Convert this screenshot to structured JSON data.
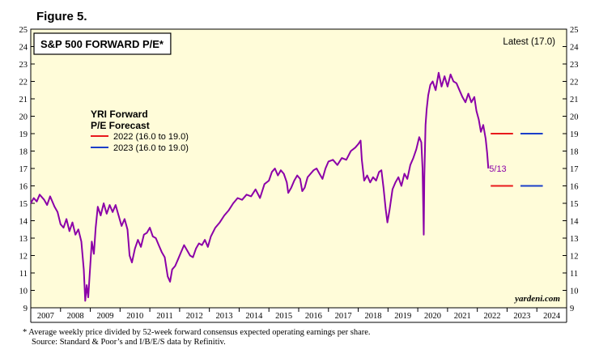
{
  "figure_label": "Figure 5.",
  "footnote": {
    "line1": "*  Average weekly price divided by 52-week forward consensus expected operating earnings per share.",
    "line2": "Source: Standard & Poor’s and I/B/E/S data by Refinitiv."
  },
  "chart_data": {
    "type": "line",
    "title": "S&P 500 FORWARD P/E*",
    "latest_label": "Latest (17.0)",
    "watermark": "yardeni.com",
    "ylim": [
      9,
      25
    ],
    "yticks": [
      9,
      10,
      11,
      12,
      13,
      14,
      15,
      16,
      17,
      18,
      19,
      20,
      21,
      22,
      23,
      24,
      25
    ],
    "xlim": [
      2007,
      2025
    ],
    "year_labels": [
      "2007",
      "2008",
      "2009",
      "2010",
      "2011",
      "2012",
      "2013",
      "2014",
      "2015",
      "2016",
      "2017",
      "2018",
      "2019",
      "2020",
      "2021",
      "2022",
      "2023",
      "2024"
    ],
    "series": [
      {
        "name": "S&P 500 Forward P/E",
        "color": "#8b00a8",
        "x": [
          2007.0,
          2007.1,
          2007.2,
          2007.3,
          2007.45,
          2007.55,
          2007.65,
          2007.8,
          2007.9,
          2008.0,
          2008.1,
          2008.2,
          2008.3,
          2008.4,
          2008.5,
          2008.6,
          2008.7,
          2008.78,
          2008.83,
          2008.88,
          2008.93,
          2009.0,
          2009.05,
          2009.12,
          2009.18,
          2009.25,
          2009.35,
          2009.45,
          2009.55,
          2009.65,
          2009.75,
          2009.85,
          2009.95,
          2010.05,
          2010.15,
          2010.25,
          2010.32,
          2010.4,
          2010.5,
          2010.6,
          2010.7,
          2010.8,
          2010.9,
          2011.0,
          2011.1,
          2011.2,
          2011.3,
          2011.4,
          2011.5,
          2011.6,
          2011.68,
          2011.75,
          2011.85,
          2011.95,
          2012.05,
          2012.15,
          2012.25,
          2012.35,
          2012.45,
          2012.55,
          2012.65,
          2012.75,
          2012.85,
          2012.95,
          2013.05,
          2013.2,
          2013.35,
          2013.5,
          2013.65,
          2013.8,
          2013.95,
          2014.1,
          2014.25,
          2014.4,
          2014.55,
          2014.7,
          2014.85,
          2015.0,
          2015.1,
          2015.2,
          2015.3,
          2015.4,
          2015.5,
          2015.6,
          2015.65,
          2015.75,
          2015.85,
          2015.95,
          2016.05,
          2016.12,
          2016.2,
          2016.3,
          2016.4,
          2016.5,
          2016.6,
          2016.7,
          2016.8,
          2016.9,
          2017.0,
          2017.15,
          2017.3,
          2017.45,
          2017.6,
          2017.75,
          2017.9,
          2018.0,
          2018.08,
          2018.12,
          2018.2,
          2018.3,
          2018.4,
          2018.5,
          2018.6,
          2018.7,
          2018.78,
          2018.85,
          2018.92,
          2018.98,
          2019.05,
          2019.15,
          2019.25,
          2019.35,
          2019.45,
          2019.55,
          2019.65,
          2019.75,
          2019.85,
          2019.95,
          2020.05,
          2020.12,
          2020.16,
          2020.2,
          2020.22,
          2020.26,
          2020.3,
          2020.35,
          2020.42,
          2020.5,
          2020.6,
          2020.7,
          2020.8,
          2020.9,
          2021.0,
          2021.1,
          2021.2,
          2021.3,
          2021.4,
          2021.5,
          2021.6,
          2021.7,
          2021.8,
          2021.9,
          2021.97,
          2022.05,
          2022.12,
          2022.2,
          2022.28,
          2022.33,
          2022.37
        ],
        "y": [
          15.0,
          15.3,
          15.1,
          15.5,
          15.2,
          14.9,
          15.4,
          14.8,
          14.5,
          13.8,
          13.6,
          14.1,
          13.4,
          13.9,
          13.2,
          13.5,
          12.8,
          11.2,
          9.4,
          10.3,
          9.6,
          11.5,
          12.8,
          12.1,
          13.6,
          14.8,
          14.3,
          15.0,
          14.4,
          14.9,
          14.5,
          14.9,
          14.3,
          13.7,
          14.1,
          13.5,
          12.0,
          11.6,
          12.4,
          12.9,
          12.5,
          13.2,
          13.3,
          13.6,
          13.1,
          13.0,
          12.6,
          12.2,
          11.9,
          10.8,
          10.5,
          11.2,
          11.4,
          11.8,
          12.2,
          12.6,
          12.3,
          12.0,
          11.9,
          12.4,
          12.7,
          12.6,
          12.9,
          12.5,
          13.1,
          13.6,
          13.9,
          14.3,
          14.6,
          15.0,
          15.3,
          15.2,
          15.5,
          15.4,
          15.8,
          15.3,
          16.1,
          16.3,
          16.8,
          17.0,
          16.6,
          16.9,
          16.7,
          16.2,
          15.6,
          15.9,
          16.3,
          16.6,
          16.4,
          15.7,
          15.9,
          16.5,
          16.7,
          16.9,
          17.0,
          16.7,
          16.4,
          17.0,
          17.4,
          17.5,
          17.2,
          17.6,
          17.5,
          18.0,
          18.2,
          18.4,
          18.6,
          17.5,
          16.3,
          16.6,
          16.2,
          16.5,
          16.3,
          16.8,
          16.9,
          15.9,
          14.7,
          13.9,
          14.6,
          15.8,
          16.2,
          16.5,
          16.0,
          16.7,
          16.4,
          17.2,
          17.6,
          18.1,
          18.8,
          18.5,
          17.0,
          13.2,
          16.5,
          19.5,
          20.4,
          21.2,
          21.8,
          22.0,
          21.5,
          22.5,
          21.7,
          22.3,
          21.7,
          22.4,
          22.0,
          21.9,
          21.5,
          21.1,
          20.8,
          21.3,
          20.8,
          21.1,
          20.3,
          19.8,
          19.1,
          19.5,
          18.7,
          17.9,
          17.0
        ]
      }
    ],
    "forecast": {
      "title_line1": "YRI Forward",
      "title_line2": "P/E Forecast",
      "entries": [
        {
          "label": "2022 (16.0 to 19.0)",
          "color": "#e8191c",
          "year_start": 2022.45,
          "year_end": 2023.2,
          "values": [
            16.0,
            19.0
          ]
        },
        {
          "label": "2023 (16.0 to 19.0)",
          "color": "#1b3fc9",
          "year_start": 2023.45,
          "year_end": 2024.2,
          "values": [
            16.0,
            19.0
          ]
        }
      ]
    },
    "annotations": [
      {
        "text": "5/13",
        "x": 2022.37,
        "y": 17.0
      }
    ]
  }
}
